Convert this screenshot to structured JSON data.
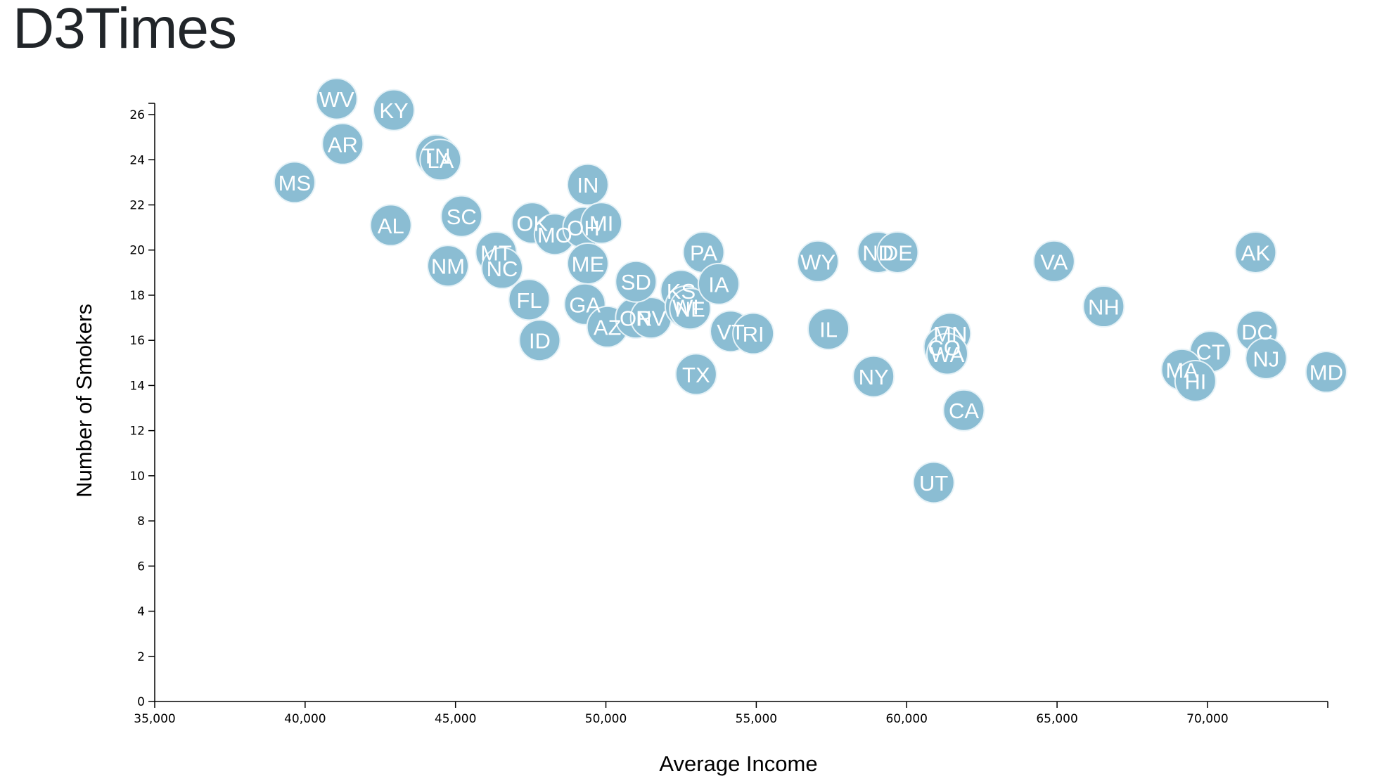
{
  "page": {
    "title": "D3Times"
  },
  "colors": {
    "point": "#8bbdd3",
    "point_stroke": "#e6f2f7",
    "axis": "#000000"
  },
  "chart_data": {
    "type": "scatter",
    "title": "",
    "xlabel": "Average Income",
    "ylabel": "Number of Smokers",
    "xlim": [
      35000,
      74000
    ],
    "ylim": [
      0,
      26.5
    ],
    "x_ticks": [
      35000,
      40000,
      45000,
      50000,
      55000,
      60000,
      65000,
      70000
    ],
    "x_tick_labels": [
      "35,000",
      "40,000",
      "45,000",
      "50,000",
      "55,000",
      "60,000",
      "65,000",
      "70,000"
    ],
    "y_ticks": [
      0,
      2,
      4,
      6,
      8,
      10,
      12,
      14,
      16,
      18,
      20,
      22,
      24,
      26
    ],
    "y_tick_labels": [
      "0",
      "2",
      "4",
      "6",
      "8",
      "10",
      "12",
      "14",
      "16",
      "18",
      "20",
      "22",
      "24",
      "26"
    ],
    "grid": false,
    "points": [
      {
        "label": "WV",
        "x": 41050,
        "y": 26.7
      },
      {
        "label": "KY",
        "x": 42950,
        "y": 26.2
      },
      {
        "label": "AR",
        "x": 41250,
        "y": 24.7
      },
      {
        "label": "TN",
        "x": 44350,
        "y": 24.2
      },
      {
        "label": "LA",
        "x": 44500,
        "y": 24.0
      },
      {
        "label": "MS",
        "x": 39650,
        "y": 23.0
      },
      {
        "label": "AL",
        "x": 42850,
        "y": 21.1
      },
      {
        "label": "SC",
        "x": 45200,
        "y": 21.5
      },
      {
        "label": "IN",
        "x": 49400,
        "y": 22.9
      },
      {
        "label": "OK",
        "x": 47550,
        "y": 21.2
      },
      {
        "label": "MO",
        "x": 48300,
        "y": 20.7
      },
      {
        "label": "OH",
        "x": 49250,
        "y": 21.0
      },
      {
        "label": "MI",
        "x": 49850,
        "y": 21.2
      },
      {
        "label": "MT",
        "x": 46350,
        "y": 19.9
      },
      {
        "label": "NM",
        "x": 44750,
        "y": 19.3
      },
      {
        "label": "NC",
        "x": 46550,
        "y": 19.2
      },
      {
        "label": "ME",
        "x": 49400,
        "y": 19.4
      },
      {
        "label": "FL",
        "x": 47450,
        "y": 17.8
      },
      {
        "label": "ID",
        "x": 47800,
        "y": 16.0
      },
      {
        "label": "GA",
        "x": 49300,
        "y": 17.6
      },
      {
        "label": "AZ",
        "x": 50050,
        "y": 16.6
      },
      {
        "label": "OR",
        "x": 51000,
        "y": 17.0
      },
      {
        "label": "NV",
        "x": 51500,
        "y": 17.0
      },
      {
        "label": "SD",
        "x": 51000,
        "y": 18.6
      },
      {
        "label": "KS",
        "x": 52500,
        "y": 18.2
      },
      {
        "label": "WI",
        "x": 52650,
        "y": 17.5
      },
      {
        "label": "NE",
        "x": 52800,
        "y": 17.4
      },
      {
        "label": "PA",
        "x": 53250,
        "y": 19.9
      },
      {
        "label": "IA",
        "x": 53750,
        "y": 18.5
      },
      {
        "label": "TX",
        "x": 53000,
        "y": 14.5
      },
      {
        "label": "VT",
        "x": 54150,
        "y": 16.4
      },
      {
        "label": "RI",
        "x": 54900,
        "y": 16.3
      },
      {
        "label": "WY",
        "x": 57050,
        "y": 19.5
      },
      {
        "label": "IL",
        "x": 57400,
        "y": 16.5
      },
      {
        "label": "ND",
        "x": 59050,
        "y": 19.9
      },
      {
        "label": "DE",
        "x": 59700,
        "y": 19.9
      },
      {
        "label": "NY",
        "x": 58900,
        "y": 14.4
      },
      {
        "label": "MN",
        "x": 61450,
        "y": 16.3
      },
      {
        "label": "CO",
        "x": 61250,
        "y": 15.7
      },
      {
        "label": "WA",
        "x": 61350,
        "y": 15.4
      },
      {
        "label": "CA",
        "x": 61900,
        "y": 12.9
      },
      {
        "label": "UT",
        "x": 60900,
        "y": 9.7
      },
      {
        "label": "VA",
        "x": 64900,
        "y": 19.5
      },
      {
        "label": "NH",
        "x": 66550,
        "y": 17.5
      },
      {
        "label": "AK",
        "x": 71600,
        "y": 19.9
      },
      {
        "label": "DC",
        "x": 71650,
        "y": 16.4
      },
      {
        "label": "CT",
        "x": 70100,
        "y": 15.5
      },
      {
        "label": "NJ",
        "x": 71950,
        "y": 15.2
      },
      {
        "label": "MA",
        "x": 69150,
        "y": 14.7
      },
      {
        "label": "HI",
        "x": 69600,
        "y": 14.2
      },
      {
        "label": "MD",
        "x": 73950,
        "y": 14.6
      }
    ]
  }
}
